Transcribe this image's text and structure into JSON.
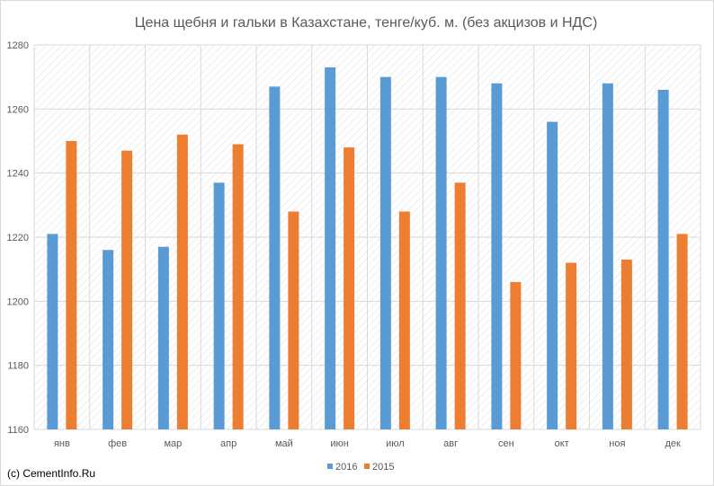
{
  "chart_data": {
    "type": "bar",
    "title": "Цена щебня и гальки в Казахстане, тенге/куб. м. (без акцизов и НДС)",
    "xlabel": "",
    "ylabel": "",
    "categories": [
      "янв",
      "фев",
      "мар",
      "апр",
      "май",
      "июн",
      "июл",
      "авг",
      "сен",
      "окт",
      "ноя",
      "дек"
    ],
    "series": [
      {
        "name": "2016",
        "color": "#5b9bd5",
        "values": [
          1221,
          1216,
          1217,
          1237,
          1267,
          1273,
          1270,
          1270,
          1268,
          1256,
          1268,
          1266
        ]
      },
      {
        "name": "2015",
        "color": "#ed7d31",
        "values": [
          1250,
          1247,
          1252,
          1249,
          1228,
          1248,
          1228,
          1237,
          1206,
          1212,
          1213,
          1221
        ]
      }
    ],
    "ylim": [
      1160,
      1280
    ],
    "yticks": [
      1160,
      1180,
      1200,
      1220,
      1240,
      1260,
      1280
    ],
    "grid": true,
    "legend_position": "bottom"
  },
  "footer": {
    "credit": "(c) CementInfo.Ru"
  }
}
